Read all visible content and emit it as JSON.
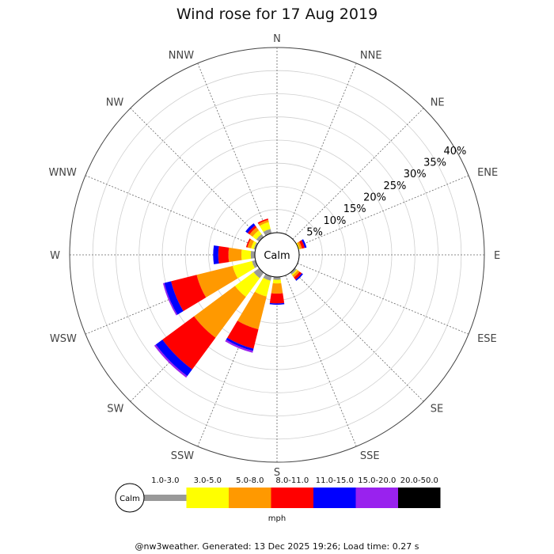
{
  "chart_data": {
    "type": "wind-rose",
    "title": "Wind rose for 17 Aug 2019",
    "directions": [
      "N",
      "NNE",
      "NE",
      "ENE",
      "E",
      "ESE",
      "SE",
      "SSE",
      "S",
      "SSW",
      "SW",
      "WSW",
      "W",
      "WNW",
      "NW",
      "NNW"
    ],
    "radial_ticks": [
      "5%",
      "10%",
      "15%",
      "20%",
      "25%",
      "30%",
      "35%",
      "40%"
    ],
    "radial_max": 40,
    "center_label": "Calm",
    "speed_bins": [
      {
        "label": "1.0-3.0",
        "color": "#999999"
      },
      {
        "label": "3.0-5.0",
        "color": "#ffff00"
      },
      {
        "label": "5.0-8.0",
        "color": "#ff9900"
      },
      {
        "label": "8.0-11.0",
        "color": "#ff0000"
      },
      {
        "label": "11.0-15.0",
        "color": "#0000ff"
      },
      {
        "label": "15.0-20.0",
        "color": "#9922ee"
      },
      {
        "label": "20.0-50.0",
        "color": "#000000"
      }
    ],
    "series": [
      {
        "direction": "ENE",
        "values": [
          0,
          0.3,
          0.5,
          0.6,
          0.4,
          0,
          0
        ]
      },
      {
        "direction": "SE",
        "values": [
          0.5,
          0.3,
          0.5,
          0.6,
          0.3,
          0,
          0
        ]
      },
      {
        "direction": "S",
        "values": [
          0.6,
          0.8,
          2.2,
          2.1,
          0.3,
          0,
          0
        ]
      },
      {
        "direction": "SSW",
        "values": [
          1.0,
          3.5,
          7.3,
          4.3,
          0.5,
          0.4,
          0
        ]
      },
      {
        "direction": "SW",
        "values": [
          1.5,
          5.0,
          11.0,
          8.5,
          1.8,
          0.4,
          0
        ]
      },
      {
        "direction": "WSW",
        "values": [
          0.8,
          4.3,
          8.0,
          5.7,
          1.5,
          0.3,
          0
        ]
      },
      {
        "direction": "W",
        "values": [
          0.9,
          2.0,
          2.8,
          2.2,
          1.1,
          0,
          0
        ]
      },
      {
        "direction": "WNW",
        "values": [
          0.4,
          0.6,
          0.8,
          0.3,
          0,
          0,
          0
        ]
      },
      {
        "direction": "NW",
        "values": [
          0.8,
          1.0,
          0.8,
          0.5,
          0.6,
          0,
          0
        ]
      },
      {
        "direction": "NNW",
        "values": [
          1.0,
          1.5,
          0.5,
          0.3,
          0,
          0,
          0
        ]
      }
    ],
    "legend_unit": "mph"
  },
  "footer": "@nw3weather. Generated: 13 Dec 2025 19:26; Load time: 0.27 s"
}
